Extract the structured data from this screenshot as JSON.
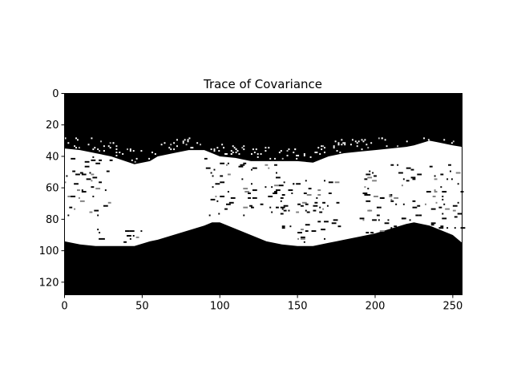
{
  "chart_data": {
    "type": "heatmap",
    "title": "Trace of Covariance",
    "xlabel": "",
    "ylabel": "",
    "xlim": [
      0,
      256
    ],
    "ylim": [
      128,
      0
    ],
    "x_ticks": [
      0,
      50,
      100,
      150,
      200,
      250
    ],
    "y_ticks": [
      0,
      20,
      40,
      60,
      80,
      100,
      120
    ],
    "colormap": "gray",
    "background_color": "#000000",
    "foreground_color": "#ffffff",
    "grid": false,
    "legend": "none",
    "region_bounds": {
      "columns": [
        0,
        10,
        20,
        30,
        45,
        55,
        60,
        70,
        80,
        90,
        95,
        100,
        110,
        120,
        130,
        140,
        150,
        160,
        165,
        170,
        175,
        180,
        190,
        200,
        210,
        220,
        225,
        235,
        240,
        250,
        256
      ],
      "upper_edge_row": [
        35,
        36,
        38,
        40,
        45,
        43,
        40,
        38,
        36,
        36,
        38,
        40,
        41,
        43,
        43,
        43,
        43,
        44,
        42,
        40,
        39,
        38,
        37,
        36,
        35,
        34,
        33,
        30,
        31,
        33,
        34
      ],
      "lower_edge_row": [
        94,
        96,
        97,
        97,
        97,
        94,
        93,
        90,
        87,
        84,
        82,
        82,
        86,
        90,
        94,
        96,
        97,
        97,
        96,
        95,
        94,
        93,
        91,
        89,
        86,
        83,
        82,
        84,
        86,
        90,
        95
      ]
    },
    "dark_speckle_clusters": [
      {
        "x": [
          0,
          30
        ],
        "y": [
          40,
          78
        ]
      },
      {
        "x": [
          20,
          50
        ],
        "y": [
          86,
          97
        ]
      },
      {
        "x": [
          90,
          140
        ],
        "y": [
          40,
          78
        ]
      },
      {
        "x": [
          140,
          180
        ],
        "y": [
          55,
          95
        ]
      },
      {
        "x": [
          190,
          256
        ],
        "y": [
          45,
          90
        ]
      }
    ]
  }
}
